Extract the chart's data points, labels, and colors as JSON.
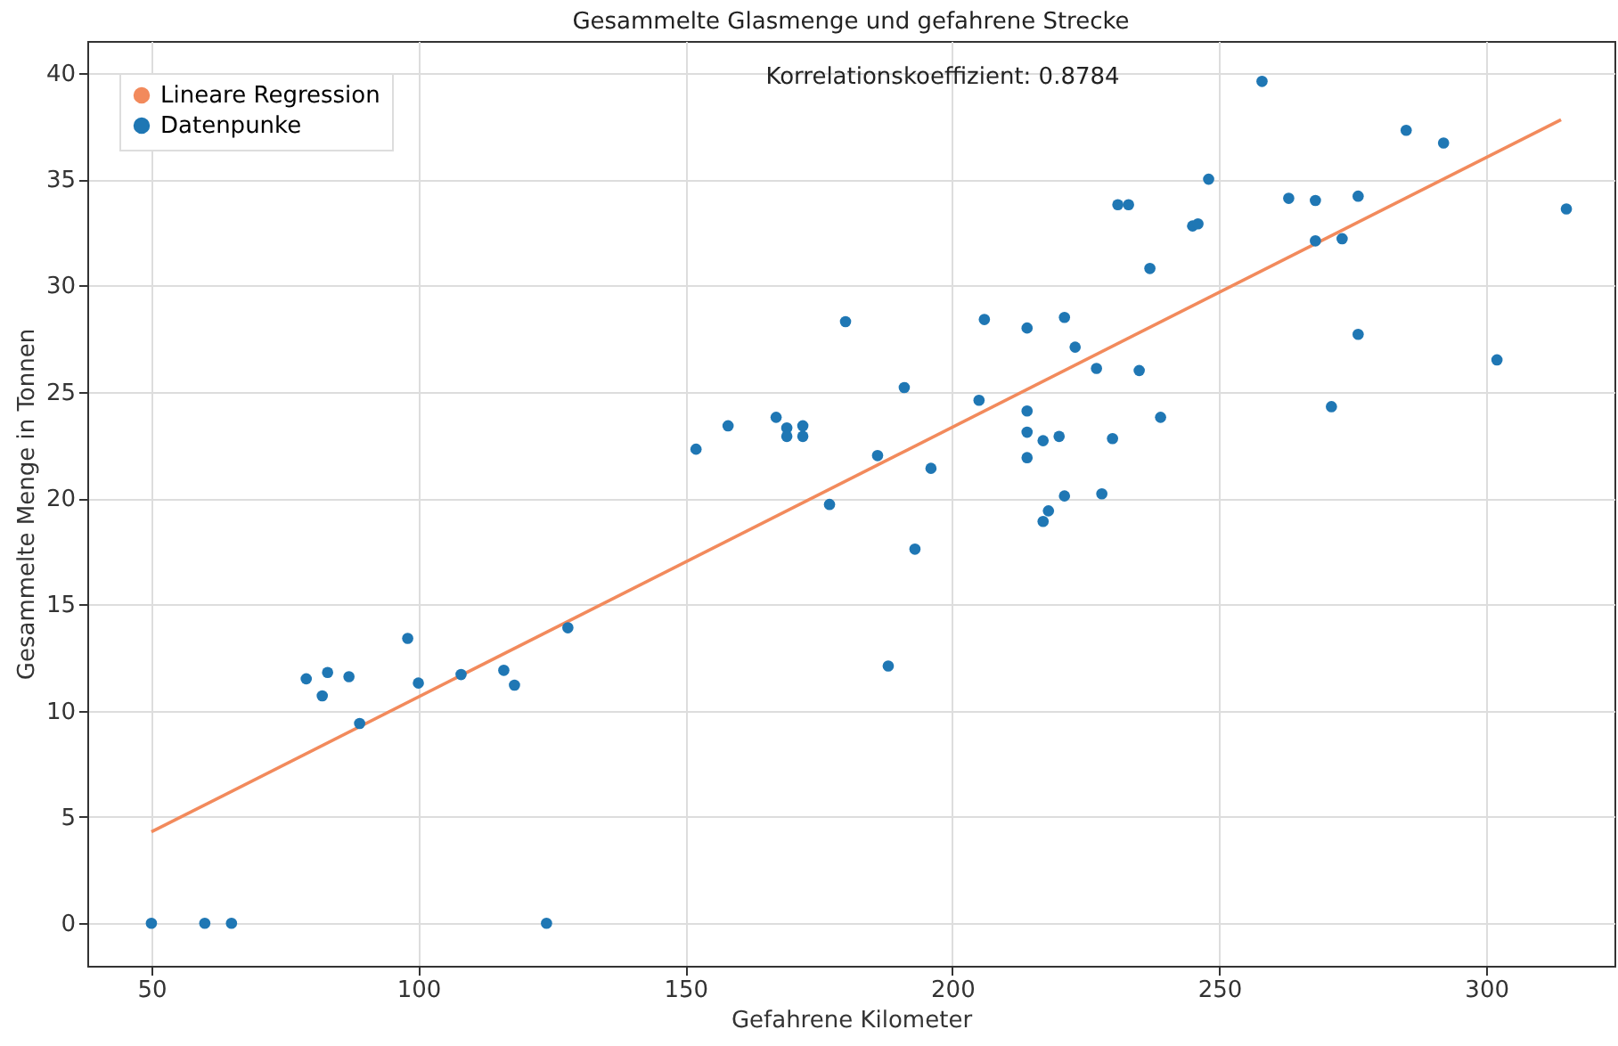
{
  "chart_data": {
    "type": "scatter",
    "title": "Gesammelte Glasmenge und gefahrene Strecke",
    "xlabel": "Gefahrene Kilometer",
    "ylabel": "Gesammelte Menge in Tonnen",
    "annotations": [
      "Korrelationskoeffizient: 0.8784"
    ],
    "xlim": [
      38,
      324
    ],
    "xticks": [
      50,
      100,
      150,
      200,
      250,
      300
    ],
    "ylim": [
      -2,
      41.5
    ],
    "yticks": [
      0,
      5,
      10,
      15,
      20,
      25,
      30,
      35,
      40
    ],
    "grid": true,
    "legend": "top left",
    "series": [
      {
        "name": "Lineare Regression",
        "type": "line",
        "color": "#f28a5c",
        "x": [
          50,
          314
        ],
        "values": [
          4.3,
          37.8
        ]
      },
      {
        "name": "Datenpunke",
        "color": "#1f77b4",
        "marker": "circle",
        "x": [
          50,
          60,
          65,
          124,
          79,
          82,
          83,
          87,
          89,
          98,
          100,
          108,
          116,
          118,
          128,
          152,
          158,
          167,
          169,
          169,
          172,
          172,
          177,
          180,
          186,
          188,
          191,
          193,
          196,
          205,
          206,
          214,
          214,
          214,
          214,
          217,
          217,
          218,
          220,
          221,
          221,
          223,
          227,
          228,
          230,
          231,
          233,
          235,
          237,
          239,
          245,
          246,
          248,
          258,
          263,
          268,
          268,
          271,
          273,
          276,
          276,
          285,
          292,
          302,
          315
        ],
        "values": [
          0,
          0,
          0,
          0,
          11.5,
          10.7,
          11.8,
          11.6,
          9.4,
          13.4,
          11.3,
          11.7,
          11.9,
          11.2,
          13.9,
          22.3,
          23.4,
          23.8,
          23.3,
          22.9,
          22.9,
          23.4,
          19.7,
          28.3,
          22.0,
          12.1,
          25.2,
          17.6,
          21.4,
          24.6,
          28.4,
          23.1,
          28.0,
          21.9,
          24.1,
          18.9,
          22.7,
          19.4,
          22.9,
          20.1,
          28.5,
          27.1,
          26.1,
          20.2,
          22.8,
          33.8,
          33.8,
          26.0,
          30.8,
          23.8,
          32.8,
          32.9,
          35.0,
          39.6,
          34.1,
          34.0,
          32.1,
          24.3,
          32.2,
          34.2,
          27.7,
          37.3,
          36.7,
          26.5,
          33.6
        ]
      }
    ]
  }
}
